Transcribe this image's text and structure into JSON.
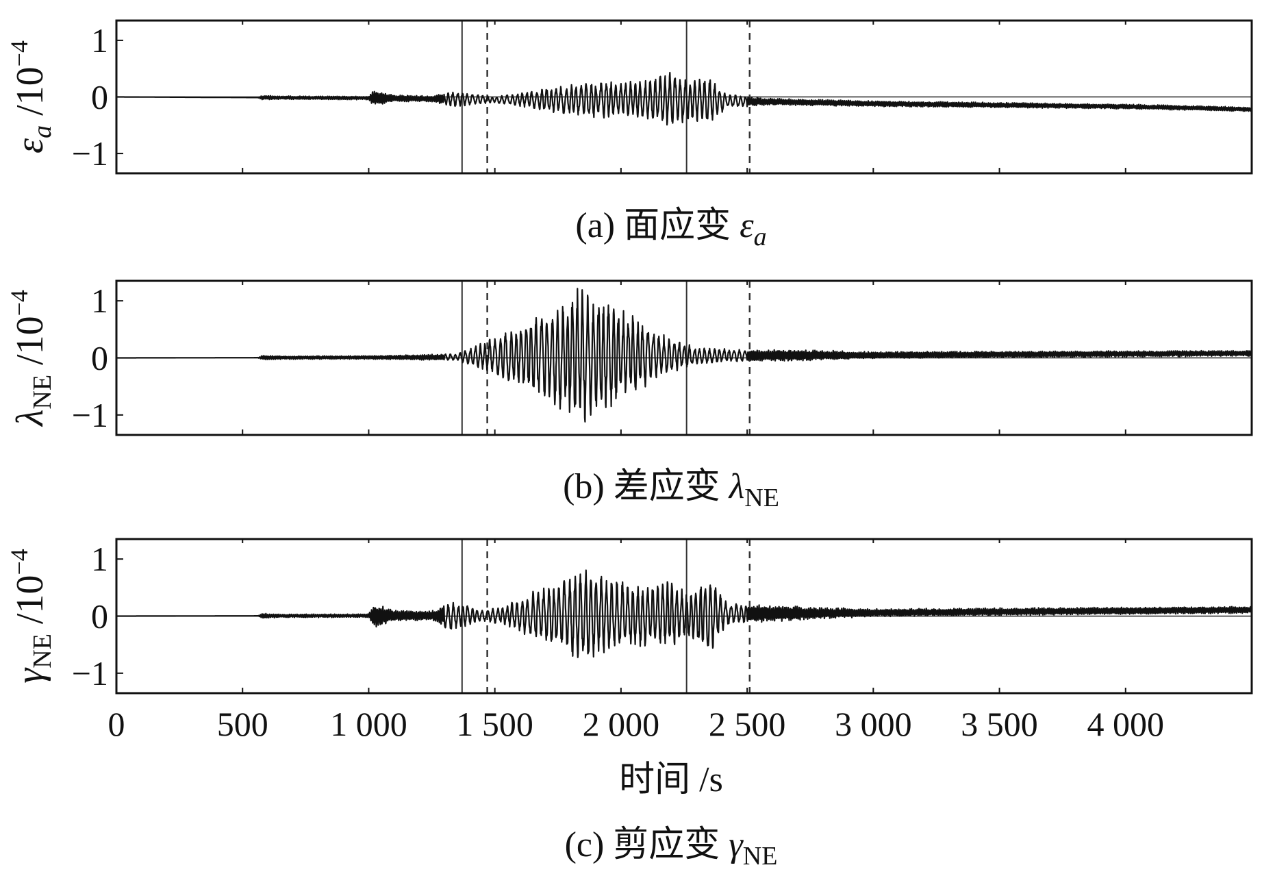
{
  "chart_data": [
    {
      "type": "line",
      "panel": "a",
      "caption_prefix": "(a) 面应变 ",
      "caption_symbol": "ε",
      "caption_sub": "a",
      "ylabel_symbol": "ε",
      "ylabel_sub": "a",
      "ylabel_unit": "/10",
      "ylabel_exp": "−4",
      "yticks": [
        "1",
        "0",
        "−1"
      ],
      "ylim": [
        -1.35,
        1.35
      ],
      "xlim": [
        0,
        4500
      ],
      "vlines_solid": [
        1370,
        2260
      ],
      "vlines_dashed": [
        1470,
        2510
      ],
      "envelope": [
        [
          0,
          0.0
        ],
        [
          560,
          0.0
        ],
        [
          580,
          0.04
        ],
        [
          640,
          0.03
        ],
        [
          1000,
          0.03
        ],
        [
          1020,
          0.14
        ],
        [
          1100,
          0.06
        ],
        [
          1250,
          0.05
        ],
        [
          1330,
          0.14
        ],
        [
          1500,
          0.05
        ],
        [
          1600,
          0.12
        ],
        [
          1700,
          0.2
        ],
        [
          1800,
          0.28
        ],
        [
          1900,
          0.35
        ],
        [
          2000,
          0.32
        ],
        [
          2100,
          0.36
        ],
        [
          2200,
          0.5
        ],
        [
          2260,
          0.36
        ],
        [
          2360,
          0.42
        ],
        [
          2420,
          0.12
        ],
        [
          2600,
          0.06
        ],
        [
          3000,
          0.05
        ],
        [
          4500,
          0.04
        ]
      ],
      "baseline": [
        [
          0,
          0.0
        ],
        [
          1000,
          -0.02
        ],
        [
          1500,
          -0.05
        ],
        [
          2000,
          -0.04
        ],
        [
          2400,
          -0.07
        ],
        [
          3000,
          -0.12
        ],
        [
          4000,
          -0.17
        ],
        [
          4500,
          -0.22
        ]
      ]
    },
    {
      "type": "line",
      "panel": "b",
      "caption_prefix": "(b) 差应变 ",
      "caption_symbol": "λ",
      "caption_sub": "NE",
      "ylabel_symbol": "λ",
      "ylabel_sub": "NE",
      "ylabel_unit": "/10",
      "ylabel_exp": "−4",
      "yticks": [
        "1",
        "0",
        "−1"
      ],
      "ylim": [
        -1.35,
        1.35
      ],
      "xlim": [
        0,
        4500
      ],
      "vlines_solid": [
        1370,
        2260
      ],
      "vlines_dashed": [
        1470,
        2510
      ],
      "envelope": [
        [
          0,
          0.0
        ],
        [
          560,
          0.0
        ],
        [
          580,
          0.04
        ],
        [
          640,
          0.03
        ],
        [
          1000,
          0.03
        ],
        [
          1350,
          0.06
        ],
        [
          1450,
          0.25
        ],
        [
          1550,
          0.45
        ],
        [
          1650,
          0.65
        ],
        [
          1750,
          0.95
        ],
        [
          1840,
          1.25
        ],
        [
          1900,
          1.0
        ],
        [
          2000,
          0.85
        ],
        [
          2100,
          0.55
        ],
        [
          2200,
          0.3
        ],
        [
          2300,
          0.15
        ],
        [
          2500,
          0.1
        ],
        [
          2700,
          0.1
        ],
        [
          3000,
          0.06
        ],
        [
          4500,
          0.05
        ]
      ],
      "baseline": [
        [
          0,
          0.0
        ],
        [
          1300,
          0.01
        ],
        [
          1500,
          0.03
        ],
        [
          2500,
          0.04
        ],
        [
          3500,
          0.06
        ],
        [
          4500,
          0.08
        ]
      ]
    },
    {
      "type": "line",
      "panel": "c",
      "caption_prefix": "(c) 剪应变 ",
      "caption_symbol": "γ",
      "caption_sub": "NE",
      "ylabel_symbol": "γ",
      "ylabel_sub": "NE",
      "ylabel_unit": "/10",
      "ylabel_exp": "−4",
      "yticks": [
        "1",
        "0",
        "−1"
      ],
      "ylim": [
        -1.35,
        1.35
      ],
      "xlim": [
        0,
        4500
      ],
      "vlines_solid": [
        1370,
        2260
      ],
      "vlines_dashed": [
        1470,
        2510
      ],
      "envelope": [
        [
          0,
          0.0
        ],
        [
          560,
          0.0
        ],
        [
          580,
          0.05
        ],
        [
          640,
          0.03
        ],
        [
          1000,
          0.03
        ],
        [
          1020,
          0.22
        ],
        [
          1100,
          0.1
        ],
        [
          1250,
          0.08
        ],
        [
          1330,
          0.28
        ],
        [
          1450,
          0.1
        ],
        [
          1550,
          0.18
        ],
        [
          1650,
          0.45
        ],
        [
          1750,
          0.55
        ],
        [
          1840,
          0.9
        ],
        [
          1950,
          0.65
        ],
        [
          2100,
          0.55
        ],
        [
          2200,
          0.6
        ],
        [
          2260,
          0.4
        ],
        [
          2350,
          0.7
        ],
        [
          2420,
          0.2
        ],
        [
          2600,
          0.14
        ],
        [
          3000,
          0.07
        ],
        [
          4500,
          0.06
        ]
      ],
      "baseline": [
        [
          0,
          0.0
        ],
        [
          1300,
          0.01
        ],
        [
          2000,
          0.02
        ],
        [
          3000,
          0.06
        ],
        [
          4500,
          0.11
        ]
      ]
    }
  ],
  "shared_x": {
    "xticks": [
      0,
      500,
      1000,
      1500,
      2000,
      2500,
      3000,
      3500,
      4000
    ],
    "xtick_labels": [
      "0",
      "500",
      "1 000",
      "1 500",
      "2 000",
      "2 500",
      "3 000",
      "3 500",
      "4 000"
    ],
    "xlabel": "时间 /s"
  }
}
